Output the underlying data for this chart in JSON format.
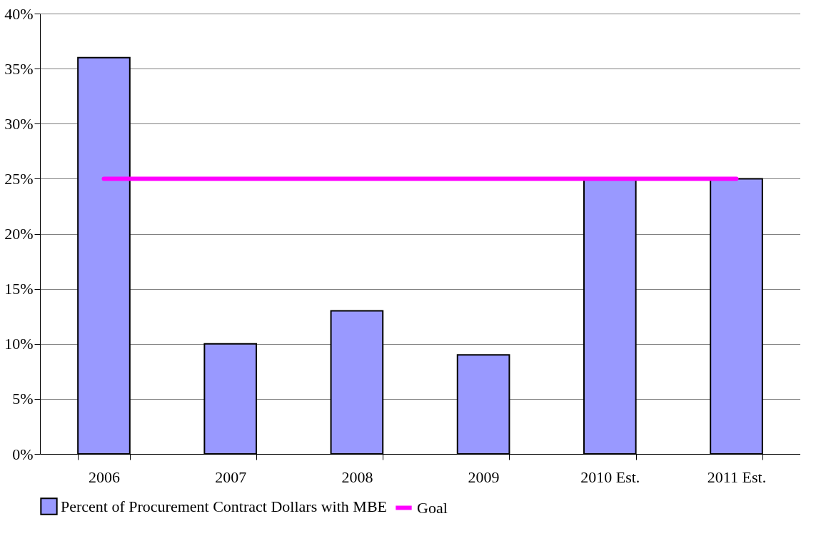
{
  "chart_data": {
    "type": "bar",
    "categories": [
      "2006",
      "2007",
      "2008",
      "2009",
      "2010 Est.",
      "2011 Est."
    ],
    "series": [
      {
        "name": "Percent of Procurement Contract Dollars with MBE",
        "color": "#9999ff",
        "values": [
          36,
          10,
          13,
          9,
          25,
          25
        ]
      },
      {
        "name": "Goal",
        "type": "line",
        "color": "#ff00ff",
        "values": [
          25,
          25,
          25,
          25,
          25,
          25
        ]
      }
    ],
    "ylim": [
      0,
      40
    ],
    "yticks": [
      {
        "value": 0,
        "label": "0%"
      },
      {
        "value": 5,
        "label": "5%"
      },
      {
        "value": 10,
        "label": "10%"
      },
      {
        "value": 15,
        "label": "15%"
      },
      {
        "value": 20,
        "label": "20%"
      },
      {
        "value": 25,
        "label": "25%"
      },
      {
        "value": 30,
        "label": "30%"
      },
      {
        "value": 35,
        "label": "35%"
      },
      {
        "value": 40,
        "label": "40%"
      }
    ],
    "grid": "y",
    "legend": "bottom",
    "marker": "none"
  }
}
